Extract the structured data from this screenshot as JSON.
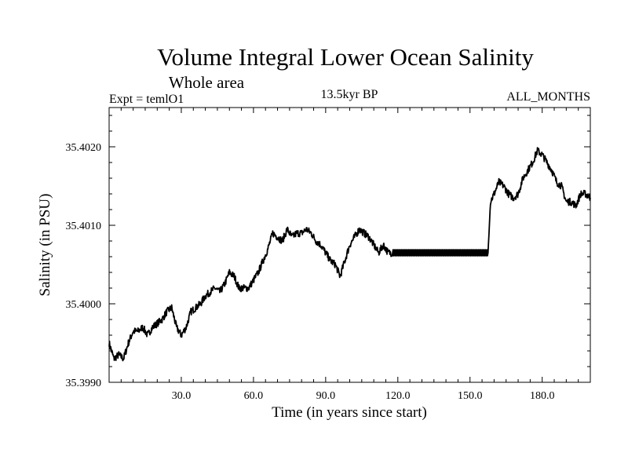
{
  "colors": {
    "background": "#ffffff",
    "foreground": "#000000"
  },
  "chart_data": {
    "type": "line",
    "title": "Volume Integral Lower Ocean Salinity",
    "subtitle": "Whole area",
    "header_left": "Expt = temlO1",
    "header_center": "13.5kyr BP",
    "header_right": "ALL_MONTHS",
    "xlabel": "Time (in years since start)",
    "ylabel": "Salinity (in PSU)",
    "xlim": [
      0,
      200
    ],
    "ylim": [
      35.399,
      35.4025
    ],
    "x_ticks": [
      30,
      60,
      90,
      120,
      150,
      180
    ],
    "x_tick_labels": [
      "30.0",
      "60.0",
      "90.0",
      "120.0",
      "150.0",
      "180.0"
    ],
    "y_ticks": [
      35.399,
      35.4,
      35.401,
      35.402
    ],
    "y_tick_labels": [
      "35.3990",
      "35.4000",
      "35.4010",
      "35.4020"
    ],
    "grid": false,
    "series": [
      {
        "name": "Salinity",
        "x": [
          0,
          2,
          4,
          6,
          8,
          10,
          12,
          14,
          16,
          18,
          20,
          22,
          24,
          26,
          28,
          30,
          32,
          34,
          36,
          38,
          40,
          42,
          44,
          46,
          48,
          50,
          52,
          54,
          56,
          58,
          60,
          62,
          64,
          66,
          68,
          70,
          72,
          74,
          76,
          78,
          80,
          82,
          84,
          86,
          88,
          90,
          92,
          94,
          96,
          98,
          100,
          102,
          104,
          106,
          108,
          110,
          112,
          114,
          116,
          118,
          157.5,
          158.5,
          160,
          162,
          164,
          166,
          168,
          170,
          172,
          174,
          176,
          178,
          180,
          182,
          184,
          186,
          188,
          190,
          192,
          194,
          196,
          198,
          200
        ],
        "values": [
          35.3995,
          35.3993,
          35.39935,
          35.3993,
          35.3995,
          35.39965,
          35.39965,
          35.3997,
          35.3996,
          35.3997,
          35.39975,
          35.3998,
          35.3999,
          35.39995,
          35.3997,
          35.3996,
          35.3997,
          35.3999,
          35.39995,
          35.4,
          35.4001,
          35.40015,
          35.4002,
          35.40015,
          35.40025,
          35.4004,
          35.40035,
          35.4002,
          35.4002,
          35.4002,
          35.4003,
          35.4004,
          35.40055,
          35.4007,
          35.4009,
          35.40085,
          35.4008,
          35.40095,
          35.40085,
          35.4009,
          35.4009,
          35.40095,
          35.4009,
          35.4008,
          35.40075,
          35.40065,
          35.40055,
          35.4005,
          35.40035,
          35.40055,
          35.40075,
          35.40085,
          35.40095,
          35.4009,
          35.40085,
          35.40075,
          35.40065,
          35.40075,
          35.40065,
          35.40065,
          35.40065,
          35.4013,
          35.4014,
          35.40155,
          35.4015,
          35.4014,
          35.40135,
          35.4014,
          35.4016,
          35.4017,
          35.4018,
          35.40195,
          35.4019,
          35.4018,
          35.4017,
          35.40155,
          35.4015,
          35.4013,
          35.4013,
          35.40125,
          35.4014,
          35.4014,
          35.40135
        ]
      }
    ]
  }
}
